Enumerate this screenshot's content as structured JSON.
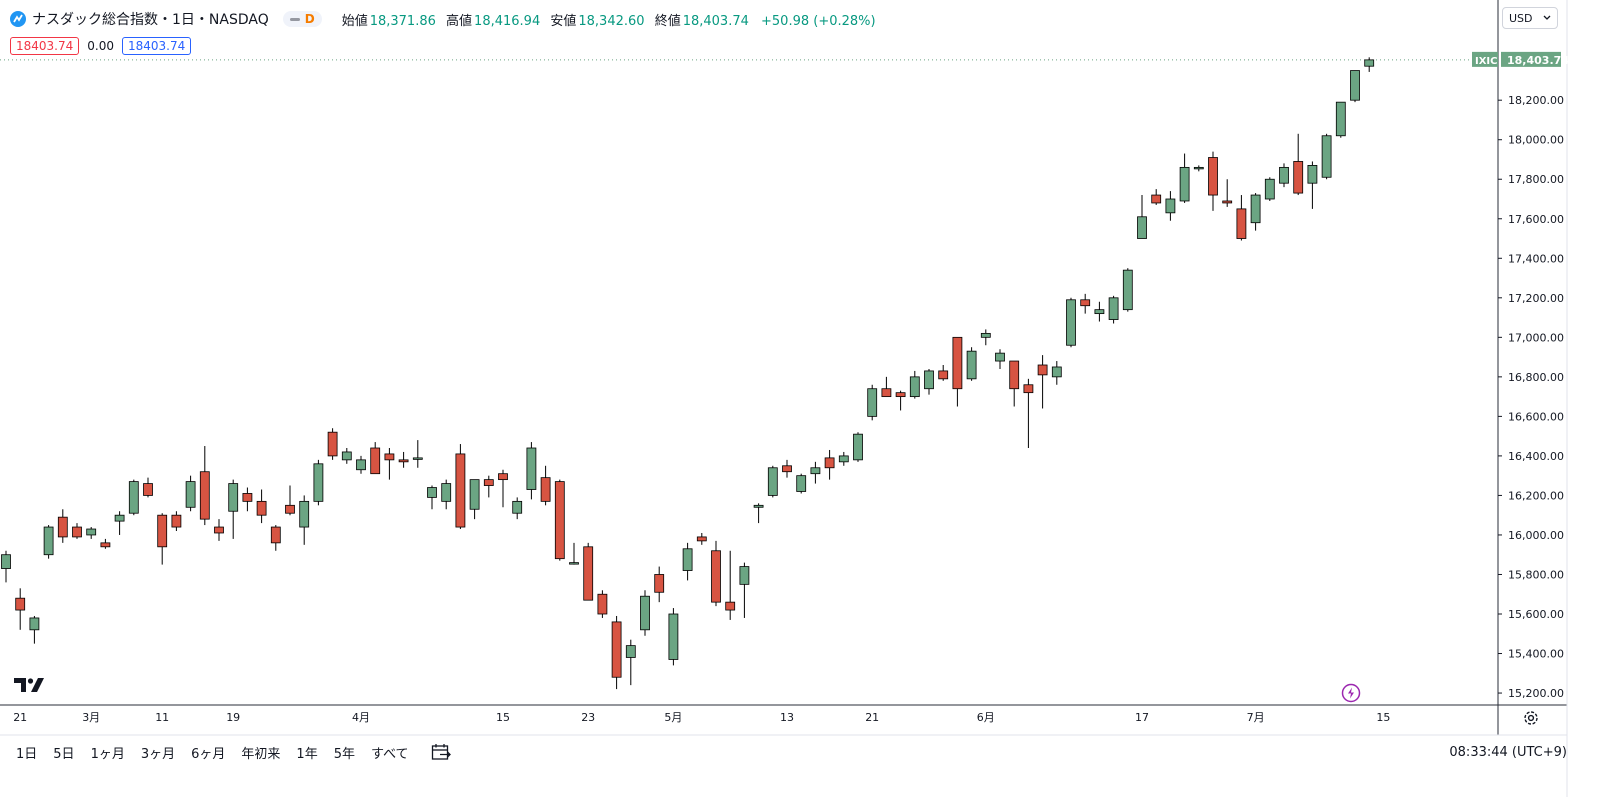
{
  "header": {
    "symbol": "ナスダック総合指数・1日・NASDAQ",
    "badge": "D",
    "open_label": "始値",
    "open": "18,371.86",
    "high_label": "高値",
    "high": "18,416.94",
    "low_label": "安値",
    "low": "18,342.60",
    "close_label": "終値",
    "close": "18,403.74",
    "change": "+50.98 (+0.28%)"
  },
  "trading": {
    "sell": "18403.74",
    "spread": "0.00",
    "buy": "18403.74"
  },
  "currency": {
    "label": "USD"
  },
  "price_axis": {
    "ticker": "IXIC",
    "last_price": "18,403.74",
    "ticks": [
      "18,200.00",
      "18,000.00",
      "17,800.00",
      "17,600.00",
      "17,400.00",
      "17,200.00",
      "17,000.00",
      "16,800.00",
      "16,600.00",
      "16,400.00",
      "16,200.00",
      "16,000.00",
      "15,800.00",
      "15,600.00",
      "15,400.00",
      "15,200.00"
    ]
  },
  "time_axis": {
    "labels": [
      {
        "text": "21",
        "index": 1
      },
      {
        "text": "3月",
        "index": 6
      },
      {
        "text": "11",
        "index": 11
      },
      {
        "text": "19",
        "index": 16
      },
      {
        "text": "4月",
        "index": 25
      },
      {
        "text": "15",
        "index": 35
      },
      {
        "text": "23",
        "index": 41
      },
      {
        "text": "5月",
        "index": 47
      },
      {
        "text": "13",
        "index": 55
      },
      {
        "text": "21",
        "index": 61
      },
      {
        "text": "6月",
        "index": 69
      },
      {
        "text": "17",
        "index": 80
      },
      {
        "text": "7月",
        "index": 88
      },
      {
        "text": "15",
        "index": 97
      }
    ]
  },
  "toolbar": {
    "ranges": [
      "1日",
      "5日",
      "1ヶ月",
      "3ヶ月",
      "6ヶ月",
      "年初来",
      "1年",
      "5年",
      "すべて"
    ],
    "clock": "08:33:44 (UTC+9)"
  },
  "colors": {
    "up": "#6ba583",
    "down": "#d75442",
    "accent": "#2196f3",
    "lastPrice": "#6ba583"
  },
  "chart_data": {
    "type": "candlestick",
    "ylim": [
      15100,
      18480
    ],
    "series": [
      {
        "o": 15830,
        "h": 15920,
        "l": 15760,
        "c": 15900
      },
      {
        "o": 15680,
        "h": 15730,
        "l": 15520,
        "c": 15620
      },
      {
        "o": 15520,
        "h": 15590,
        "l": 15450,
        "c": 15580
      },
      {
        "o": 15900,
        "h": 16050,
        "l": 15880,
        "c": 16040
      },
      {
        "o": 16090,
        "h": 16130,
        "l": 15960,
        "c": 15990
      },
      {
        "o": 16040,
        "h": 16060,
        "l": 15980,
        "c": 15990
      },
      {
        "o": 16000,
        "h": 16040,
        "l": 15980,
        "c": 16030
      },
      {
        "o": 15960,
        "h": 15980,
        "l": 15930,
        "c": 15940
      },
      {
        "o": 16070,
        "h": 16120,
        "l": 16000,
        "c": 16100
      },
      {
        "o": 16110,
        "h": 16280,
        "l": 16100,
        "c": 16270
      },
      {
        "o": 16260,
        "h": 16290,
        "l": 16190,
        "c": 16200
      },
      {
        "o": 16100,
        "h": 16110,
        "l": 15850,
        "c": 15940
      },
      {
        "o": 16100,
        "h": 16120,
        "l": 16020,
        "c": 16040
      },
      {
        "o": 16140,
        "h": 16300,
        "l": 16120,
        "c": 16270
      },
      {
        "o": 16320,
        "h": 16450,
        "l": 16050,
        "c": 16080
      },
      {
        "o": 16040,
        "h": 16080,
        "l": 15970,
        "c": 16010
      },
      {
        "o": 16120,
        "h": 16280,
        "l": 15980,
        "c": 16260
      },
      {
        "o": 16210,
        "h": 16240,
        "l": 16120,
        "c": 16170
      },
      {
        "o": 16170,
        "h": 16230,
        "l": 16060,
        "c": 16100
      },
      {
        "o": 16040,
        "h": 16050,
        "l": 15920,
        "c": 15960
      },
      {
        "o": 16150,
        "h": 16250,
        "l": 16100,
        "c": 16110
      },
      {
        "o": 16040,
        "h": 16200,
        "l": 15950,
        "c": 16170
      },
      {
        "o": 16170,
        "h": 16380,
        "l": 16150,
        "c": 16360
      },
      {
        "o": 16520,
        "h": 16540,
        "l": 16380,
        "c": 16400
      },
      {
        "o": 16380,
        "h": 16440,
        "l": 16360,
        "c": 16420
      },
      {
        "o": 16330,
        "h": 16400,
        "l": 16310,
        "c": 16380
      },
      {
        "o": 16440,
        "h": 16470,
        "l": 16310,
        "c": 16310
      },
      {
        "o": 16410,
        "h": 16440,
        "l": 16280,
        "c": 16380
      },
      {
        "o": 16380,
        "h": 16420,
        "l": 16340,
        "c": 16370
      },
      {
        "o": 16390,
        "h": 16480,
        "l": 16340,
        "c": 16390
      },
      {
        "o": 16190,
        "h": 16250,
        "l": 16130,
        "c": 16240
      },
      {
        "o": 16170,
        "h": 16280,
        "l": 16130,
        "c": 16260
      },
      {
        "o": 16410,
        "h": 16460,
        "l": 16030,
        "c": 16040
      },
      {
        "o": 16130,
        "h": 16280,
        "l": 16080,
        "c": 16280
      },
      {
        "o": 16280,
        "h": 16300,
        "l": 16190,
        "c": 16250
      },
      {
        "o": 16310,
        "h": 16330,
        "l": 16140,
        "c": 16280
      },
      {
        "o": 16110,
        "h": 16190,
        "l": 16080,
        "c": 16170
      },
      {
        "o": 16230,
        "h": 16470,
        "l": 16180,
        "c": 16440
      },
      {
        "o": 16290,
        "h": 16350,
        "l": 16150,
        "c": 16170
      },
      {
        "o": 16270,
        "h": 16280,
        "l": 15870,
        "c": 15880
      },
      {
        "o": 15860,
        "h": 15960,
        "l": 15850,
        "c": 15860
      },
      {
        "o": 15940,
        "h": 15960,
        "l": 15670,
        "c": 15670
      },
      {
        "o": 15700,
        "h": 15720,
        "l": 15580,
        "c": 15600
      },
      {
        "o": 15560,
        "h": 15590,
        "l": 15220,
        "c": 15280
      },
      {
        "o": 15380,
        "h": 15470,
        "l": 15240,
        "c": 15440
      },
      {
        "o": 15520,
        "h": 15720,
        "l": 15490,
        "c": 15690
      },
      {
        "o": 15800,
        "h": 15840,
        "l": 15660,
        "c": 15710
      },
      {
        "o": 15370,
        "h": 15630,
        "l": 15340,
        "c": 15600
      },
      {
        "o": 15820,
        "h": 15960,
        "l": 15770,
        "c": 15930
      },
      {
        "o": 15990,
        "h": 16010,
        "l": 15950,
        "c": 15970
      },
      {
        "o": 15920,
        "h": 15970,
        "l": 15640,
        "c": 15660
      },
      {
        "o": 15660,
        "h": 15920,
        "l": 15570,
        "c": 15620
      },
      {
        "o": 15750,
        "h": 15860,
        "l": 15580,
        "c": 15840
      },
      {
        "o": 16140,
        "h": 16160,
        "l": 16060,
        "c": 16150
      },
      {
        "o": 16200,
        "h": 16350,
        "l": 16190,
        "c": 16340
      },
      {
        "o": 16350,
        "h": 16380,
        "l": 16290,
        "c": 16320
      },
      {
        "o": 16220,
        "h": 16310,
        "l": 16210,
        "c": 16300
      },
      {
        "o": 16310,
        "h": 16370,
        "l": 16260,
        "c": 16340
      },
      {
        "o": 16390,
        "h": 16430,
        "l": 16280,
        "c": 16340
      },
      {
        "o": 16370,
        "h": 16420,
        "l": 16350,
        "c": 16400
      },
      {
        "o": 16380,
        "h": 16520,
        "l": 16370,
        "c": 16510
      },
      {
        "o": 16600,
        "h": 16760,
        "l": 16580,
        "c": 16740
      },
      {
        "o": 16740,
        "h": 16800,
        "l": 16700,
        "c": 16700
      },
      {
        "o": 16720,
        "h": 16730,
        "l": 16630,
        "c": 16700
      },
      {
        "o": 16700,
        "h": 16830,
        "l": 16690,
        "c": 16800
      },
      {
        "o": 16740,
        "h": 16840,
        "l": 16710,
        "c": 16830
      },
      {
        "o": 16830,
        "h": 16860,
        "l": 16780,
        "c": 16790
      },
      {
        "o": 17000,
        "h": 17000,
        "l": 16650,
        "c": 16740
      },
      {
        "o": 16790,
        "h": 16950,
        "l": 16780,
        "c": 16930
      },
      {
        "o": 17000,
        "h": 17040,
        "l": 16960,
        "c": 17020
      },
      {
        "o": 16880,
        "h": 16940,
        "l": 16840,
        "c": 16920
      },
      {
        "o": 16880,
        "h": 16880,
        "l": 16650,
        "c": 16740
      },
      {
        "o": 16760,
        "h": 16790,
        "l": 16440,
        "c": 16720
      },
      {
        "o": 16860,
        "h": 16910,
        "l": 16640,
        "c": 16810
      },
      {
        "o": 16800,
        "h": 16880,
        "l": 16760,
        "c": 16850
      },
      {
        "o": 16960,
        "h": 17200,
        "l": 16950,
        "c": 17190
      },
      {
        "o": 17190,
        "h": 17220,
        "l": 17120,
        "c": 17160
      },
      {
        "o": 17120,
        "h": 17180,
        "l": 17080,
        "c": 17140
      },
      {
        "o": 17090,
        "h": 17210,
        "l": 17070,
        "c": 17200
      },
      {
        "o": 17140,
        "h": 17350,
        "l": 17130,
        "c": 17340
      },
      {
        "o": 17500,
        "h": 17720,
        "l": 17500,
        "c": 17610
      },
      {
        "o": 17720,
        "h": 17750,
        "l": 17670,
        "c": 17680
      },
      {
        "o": 17630,
        "h": 17740,
        "l": 17590,
        "c": 17700
      },
      {
        "o": 17690,
        "h": 17930,
        "l": 17680,
        "c": 17860
      },
      {
        "o": 17860,
        "h": 17870,
        "l": 17840,
        "c": 17860
      },
      {
        "o": 17910,
        "h": 17940,
        "l": 17640,
        "c": 17720
      },
      {
        "o": 17690,
        "h": 17800,
        "l": 17660,
        "c": 17680
      },
      {
        "o": 17650,
        "h": 17720,
        "l": 17490,
        "c": 17500
      },
      {
        "o": 17580,
        "h": 17730,
        "l": 17540,
        "c": 17720
      },
      {
        "o": 17700,
        "h": 17810,
        "l": 17690,
        "c": 17800
      },
      {
        "o": 17780,
        "h": 17880,
        "l": 17760,
        "c": 17860
      },
      {
        "o": 17890,
        "h": 18030,
        "l": 17720,
        "c": 17730
      },
      {
        "o": 17780,
        "h": 17890,
        "l": 17650,
        "c": 17870
      },
      {
        "o": 17810,
        "h": 18030,
        "l": 17800,
        "c": 18020
      },
      {
        "o": 18020,
        "h": 18190,
        "l": 18010,
        "c": 18190
      },
      {
        "o": 18200,
        "h": 18350,
        "l": 18190,
        "c": 18350
      },
      {
        "o": 18372,
        "h": 18417,
        "l": 18343,
        "c": 18404
      }
    ]
  }
}
